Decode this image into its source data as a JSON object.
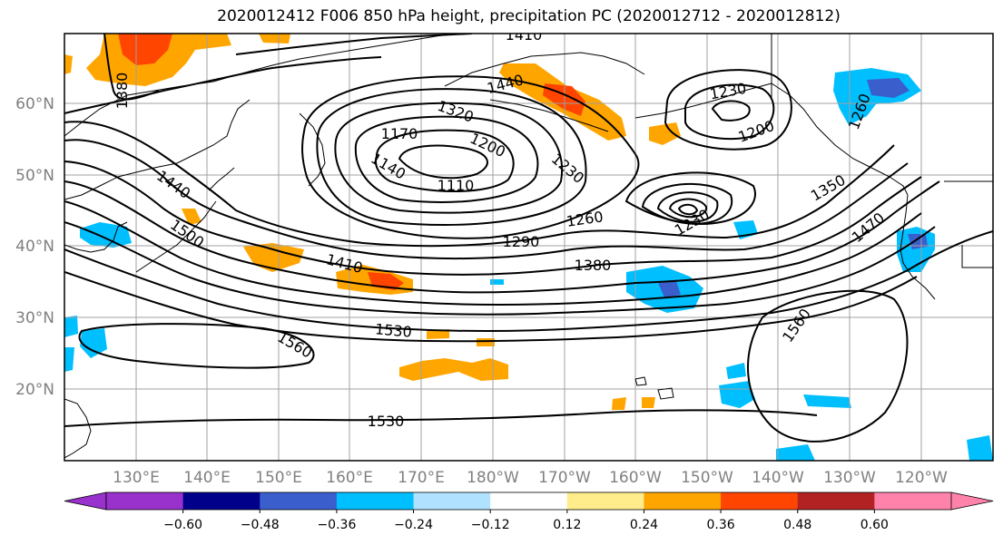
{
  "title": "2020012412 F006 850 hPa height, precipitation PC (2020012712 - 2020012812)",
  "lat_labels": [
    "60°N",
    "50°N",
    "40°N",
    "30°N",
    "20°N"
  ],
  "lon_labels": [
    "130°E",
    "140°E",
    "150°E",
    "160°E",
    "170°E",
    "180°W",
    "170°W",
    "160°W",
    "150°W",
    "140°W",
    "130°W",
    "120°W"
  ],
  "contour_labels": [
    "1410",
    "1380",
    "1440",
    "1320",
    "1170",
    "1200",
    "1230",
    "1140",
    "1110",
    "1230",
    "1200",
    "1260",
    "1440",
    "1500",
    "1290",
    "1260",
    "1230",
    "1350",
    "1410",
    "1380",
    "1470",
    "1530",
    "1560",
    "1560",
    "1530"
  ],
  "colorbar": {
    "colors": [
      "#9932cc",
      "#00008b",
      "#3a5fcd",
      "#00bfff",
      "#b0e2ff",
      "#ffffff",
      "#ffec8b",
      "#ffa500",
      "#ff4500",
      "#b22222",
      "#ff82ab"
    ],
    "tick_labels": [
      "−0.60",
      "−0.48",
      "−0.36",
      "−0.24",
      "−0.12",
      "0.12",
      "0.24",
      "0.36",
      "0.48",
      "0.60"
    ]
  }
}
